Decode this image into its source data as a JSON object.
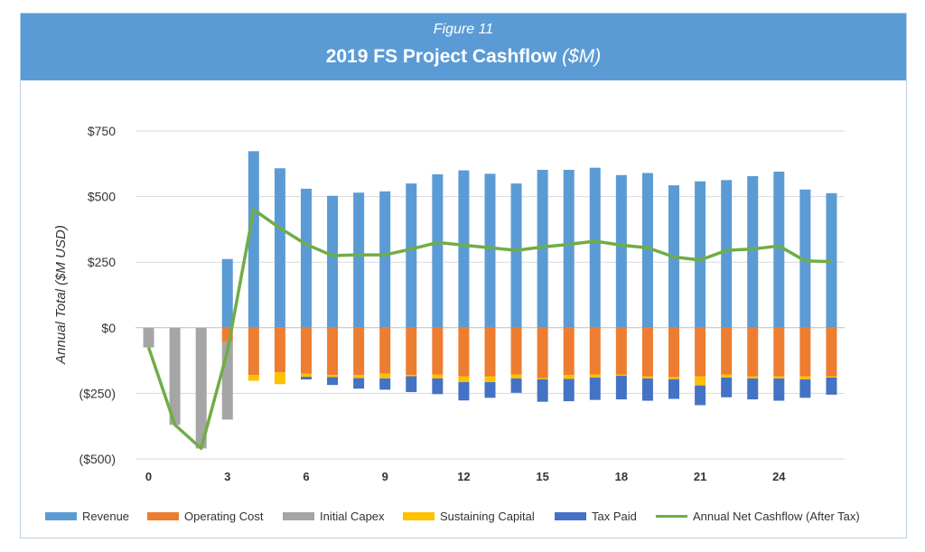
{
  "header": {
    "figure_label": "Figure 11",
    "title_main": "2019 FS Project Cashflow",
    "title_unit": "($M)"
  },
  "colors": {
    "banner": "#5b9bd5",
    "revenue": "#5b9bd5",
    "operating": "#ed7d31",
    "capex": "#a5a5a5",
    "sustaining": "#ffc000",
    "tax": "#4472c4",
    "net": "#70ad47"
  },
  "chart_data": {
    "type": "bar",
    "ylabel": "Annual Total ($M USD)",
    "ylim": [
      -500,
      750
    ],
    "yticks": [
      750,
      500,
      250,
      0,
      -250,
      -500
    ],
    "ytick_labels": [
      "$750",
      "$500",
      "$250",
      "$0",
      "($250)",
      "($500)"
    ],
    "x": [
      0,
      1,
      2,
      3,
      4,
      5,
      6,
      7,
      8,
      9,
      10,
      11,
      12,
      13,
      14,
      15,
      16,
      17,
      18,
      19,
      20,
      21,
      22,
      23,
      24,
      25,
      26
    ],
    "xtick_labels": [
      "0",
      "3",
      "6",
      "9",
      "12",
      "15",
      "18",
      "21",
      "24"
    ],
    "xtick_values": [
      0,
      3,
      6,
      9,
      12,
      15,
      18,
      21,
      24
    ],
    "grid": true,
    "legend_position": "bottom",
    "series": [
      {
        "name": "Revenue",
        "kind": "bar",
        "values": [
          0,
          0,
          0,
          262,
          673,
          608,
          530,
          503,
          515,
          520,
          550,
          585,
          600,
          587,
          550,
          602,
          602,
          610,
          582,
          590,
          543,
          558,
          563,
          578,
          595,
          527,
          513
        ]
      },
      {
        "name": "Operating Cost",
        "kind": "bar",
        "values": [
          0,
          0,
          0,
          -55,
          -180,
          -170,
          -175,
          -180,
          -180,
          -175,
          -180,
          -178,
          -185,
          -185,
          -178,
          -192,
          -180,
          -178,
          -178,
          -185,
          -188,
          -185,
          -178,
          -185,
          -185,
          -185,
          -185
        ]
      },
      {
        "name": "Initial Capex",
        "kind": "bar",
        "values": [
          -75,
          -370,
          -460,
          -295,
          0,
          0,
          0,
          0,
          0,
          0,
          0,
          0,
          0,
          0,
          0,
          0,
          0,
          0,
          0,
          0,
          0,
          0,
          0,
          0,
          0,
          0,
          0
        ]
      },
      {
        "name": "Sustaining Capital",
        "kind": "bar",
        "values": [
          0,
          0,
          0,
          0,
          -22,
          -45,
          -12,
          -8,
          -12,
          -18,
          -5,
          -15,
          -22,
          -22,
          -15,
          -5,
          -15,
          -12,
          -5,
          -8,
          -8,
          -35,
          -12,
          -8,
          -8,
          -12,
          -5
        ]
      },
      {
        "name": "Tax Paid",
        "kind": "bar",
        "values": [
          0,
          0,
          0,
          0,
          0,
          0,
          -10,
          -30,
          -40,
          -43,
          -60,
          -60,
          -70,
          -60,
          -55,
          -85,
          -85,
          -85,
          -90,
          -85,
          -75,
          -75,
          -75,
          -80,
          -85,
          -70,
          -65
        ]
      },
      {
        "name": "Annual Net Cashflow (After Tax)",
        "kind": "line",
        "values": [
          -75,
          -370,
          -460,
          -90,
          450,
          380,
          318,
          275,
          278,
          278,
          300,
          325,
          315,
          305,
          295,
          308,
          318,
          330,
          315,
          305,
          270,
          258,
          295,
          300,
          312,
          255,
          252
        ]
      }
    ]
  }
}
